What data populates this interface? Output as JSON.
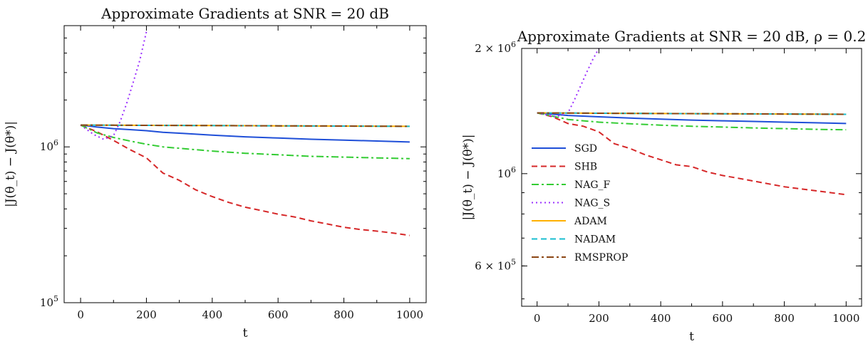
{
  "chart_data": [
    {
      "type": "line",
      "title": "Approximate Gradients at SNR = 20 dB",
      "xlabel": "t",
      "ylabel": "|J(θ_t) − J(θ*)|",
      "yscale": "log",
      "xlim": [
        -50,
        1050
      ],
      "ylim": [
        100000,
        6000000
      ],
      "xticks": [
        0,
        200,
        400,
        600,
        800,
        1000
      ],
      "xtick_labels": [
        "0",
        "200",
        "400",
        "600",
        "800",
        "1000"
      ],
      "yticks": [
        100000,
        1000000
      ],
      "ytick_labels": [
        {
          "base": "10",
          "exp": "5"
        },
        {
          "base": "10",
          "exp": "6"
        }
      ],
      "legend": null,
      "series": [
        {
          "name": "SGD",
          "color": "#1f4fd8",
          "dash": "solid",
          "x": [
            0,
            50,
            100,
            150,
            200,
            250,
            300,
            400,
            500,
            600,
            700,
            800,
            900,
            1000
          ],
          "y": [
            1380000,
            1340000,
            1310000,
            1290000,
            1270000,
            1240000,
            1225000,
            1190000,
            1160000,
            1140000,
            1120000,
            1105000,
            1090000,
            1075000
          ]
        },
        {
          "name": "SHB",
          "color": "#d62728",
          "dash": "dashed",
          "x": [
            0,
            50,
            100,
            150,
            200,
            250,
            300,
            350,
            400,
            450,
            500,
            550,
            600,
            650,
            700,
            750,
            800,
            850,
            900,
            950,
            1000
          ],
          "y": [
            1380000,
            1250000,
            1100000,
            960000,
            850000,
            680000,
            610000,
            530000,
            480000,
            440000,
            410000,
            390000,
            370000,
            355000,
            335000,
            320000,
            305000,
            295000,
            288000,
            280000,
            270000
          ]
        },
        {
          "name": "NAG_F",
          "color": "#33cc33",
          "dash": "dashdot",
          "x": [
            0,
            50,
            100,
            150,
            200,
            250,
            300,
            400,
            500,
            600,
            700,
            800,
            900,
            1000
          ],
          "y": [
            1380000,
            1230000,
            1150000,
            1090000,
            1040000,
            1000000,
            980000,
            940000,
            910000,
            890000,
            870000,
            860000,
            850000,
            840000
          ]
        },
        {
          "name": "NAG_S",
          "color": "#9b30ff",
          "dash": "dotted",
          "x": [
            0,
            40,
            70,
            100,
            120,
            140,
            160,
            180,
            200
          ],
          "y": [
            1380000,
            1200000,
            1120000,
            1180000,
            1450000,
            1900000,
            2600000,
            3600000,
            5500000
          ]
        },
        {
          "name": "ADAM",
          "color": "#ffb000",
          "dash": "solid",
          "x": [
            0,
            200,
            400,
            600,
            800,
            1000
          ],
          "y": [
            1380000,
            1375000,
            1370000,
            1365000,
            1360000,
            1355000
          ]
        },
        {
          "name": "NADAM",
          "color": "#17becf",
          "dash": "dashed",
          "x": [
            0,
            200,
            400,
            600,
            800,
            1000
          ],
          "y": [
            1380000,
            1375000,
            1370000,
            1365000,
            1360000,
            1355000
          ]
        },
        {
          "name": "RMSPROP",
          "color": "#8b4513",
          "dash": "dashdot",
          "x": [
            0,
            200,
            400,
            600,
            800,
            1000
          ],
          "y": [
            1380000,
            1375000,
            1370000,
            1365000,
            1360000,
            1355000
          ]
        }
      ]
    },
    {
      "type": "line",
      "title": "Approximate Gradients at SNR = 20 dB, ρ = 0.2",
      "xlabel": "t",
      "ylabel": "|J(θ_t) − J(θ*)|",
      "yscale": "log",
      "xlim": [
        -50,
        1050
      ],
      "ylim": [
        480000,
        2000000
      ],
      "xticks": [
        0,
        200,
        400,
        600,
        800,
        1000
      ],
      "xtick_labels": [
        "0",
        "200",
        "400",
        "600",
        "800",
        "1000"
      ],
      "yticks": [
        600000,
        1000000,
        2000000
      ],
      "ytick_labels": [
        {
          "base": "6 × 10",
          "exp": "5"
        },
        {
          "base": "10",
          "exp": "6"
        },
        {
          "base": "2 × 10",
          "exp": "6"
        }
      ],
      "legend": "left",
      "series": [
        {
          "name": "SGD",
          "color": "#1f4fd8",
          "dash": "solid",
          "x": [
            0,
            100,
            200,
            300,
            400,
            500,
            600,
            700,
            800,
            900,
            1000
          ],
          "y": [
            1400000,
            1380000,
            1370000,
            1360000,
            1352000,
            1345000,
            1340000,
            1335000,
            1330000,
            1325000,
            1320000
          ]
        },
        {
          "name": "SHB",
          "color": "#d62728",
          "dash": "dashed",
          "x": [
            0,
            50,
            100,
            150,
            200,
            250,
            300,
            350,
            400,
            450,
            500,
            550,
            600,
            650,
            700,
            750,
            800,
            850,
            900,
            950,
            1000
          ],
          "y": [
            1400000,
            1370000,
            1320000,
            1300000,
            1260000,
            1180000,
            1150000,
            1110000,
            1080000,
            1050000,
            1040000,
            1010000,
            990000,
            975000,
            960000,
            945000,
            930000,
            920000,
            910000,
            900000,
            890000
          ]
        },
        {
          "name": "NAG_F",
          "color": "#33cc33",
          "dash": "dashdot",
          "x": [
            0,
            100,
            200,
            300,
            400,
            500,
            600,
            700,
            800,
            900,
            1000
          ],
          "y": [
            1400000,
            1350000,
            1330000,
            1318000,
            1308000,
            1300000,
            1294000,
            1288000,
            1283000,
            1278000,
            1275000
          ]
        },
        {
          "name": "NAG_S",
          "color": "#9b30ff",
          "dash": "dotted",
          "x": [
            0,
            60,
            100,
            120,
            140,
            160,
            180,
            200
          ],
          "y": [
            1400000,
            1370000,
            1400000,
            1500000,
            1620000,
            1750000,
            1880000,
            2000000
          ]
        },
        {
          "name": "ADAM",
          "color": "#ffb000",
          "dash": "solid",
          "x": [
            0,
            200,
            400,
            600,
            800,
            1000
          ],
          "y": [
            1400000,
            1397000,
            1395000,
            1393000,
            1391000,
            1389000
          ]
        },
        {
          "name": "NADAM",
          "color": "#17becf",
          "dash": "dashed",
          "x": [
            0,
            200,
            400,
            600,
            800,
            1000
          ],
          "y": [
            1400000,
            1397000,
            1395000,
            1393000,
            1391000,
            1389000
          ]
        },
        {
          "name": "RMSPROP",
          "color": "#8b4513",
          "dash": "dashdot",
          "x": [
            0,
            200,
            400,
            600,
            800,
            1000
          ],
          "y": [
            1400000,
            1397000,
            1395000,
            1393000,
            1391000,
            1389000
          ]
        }
      ]
    }
  ]
}
